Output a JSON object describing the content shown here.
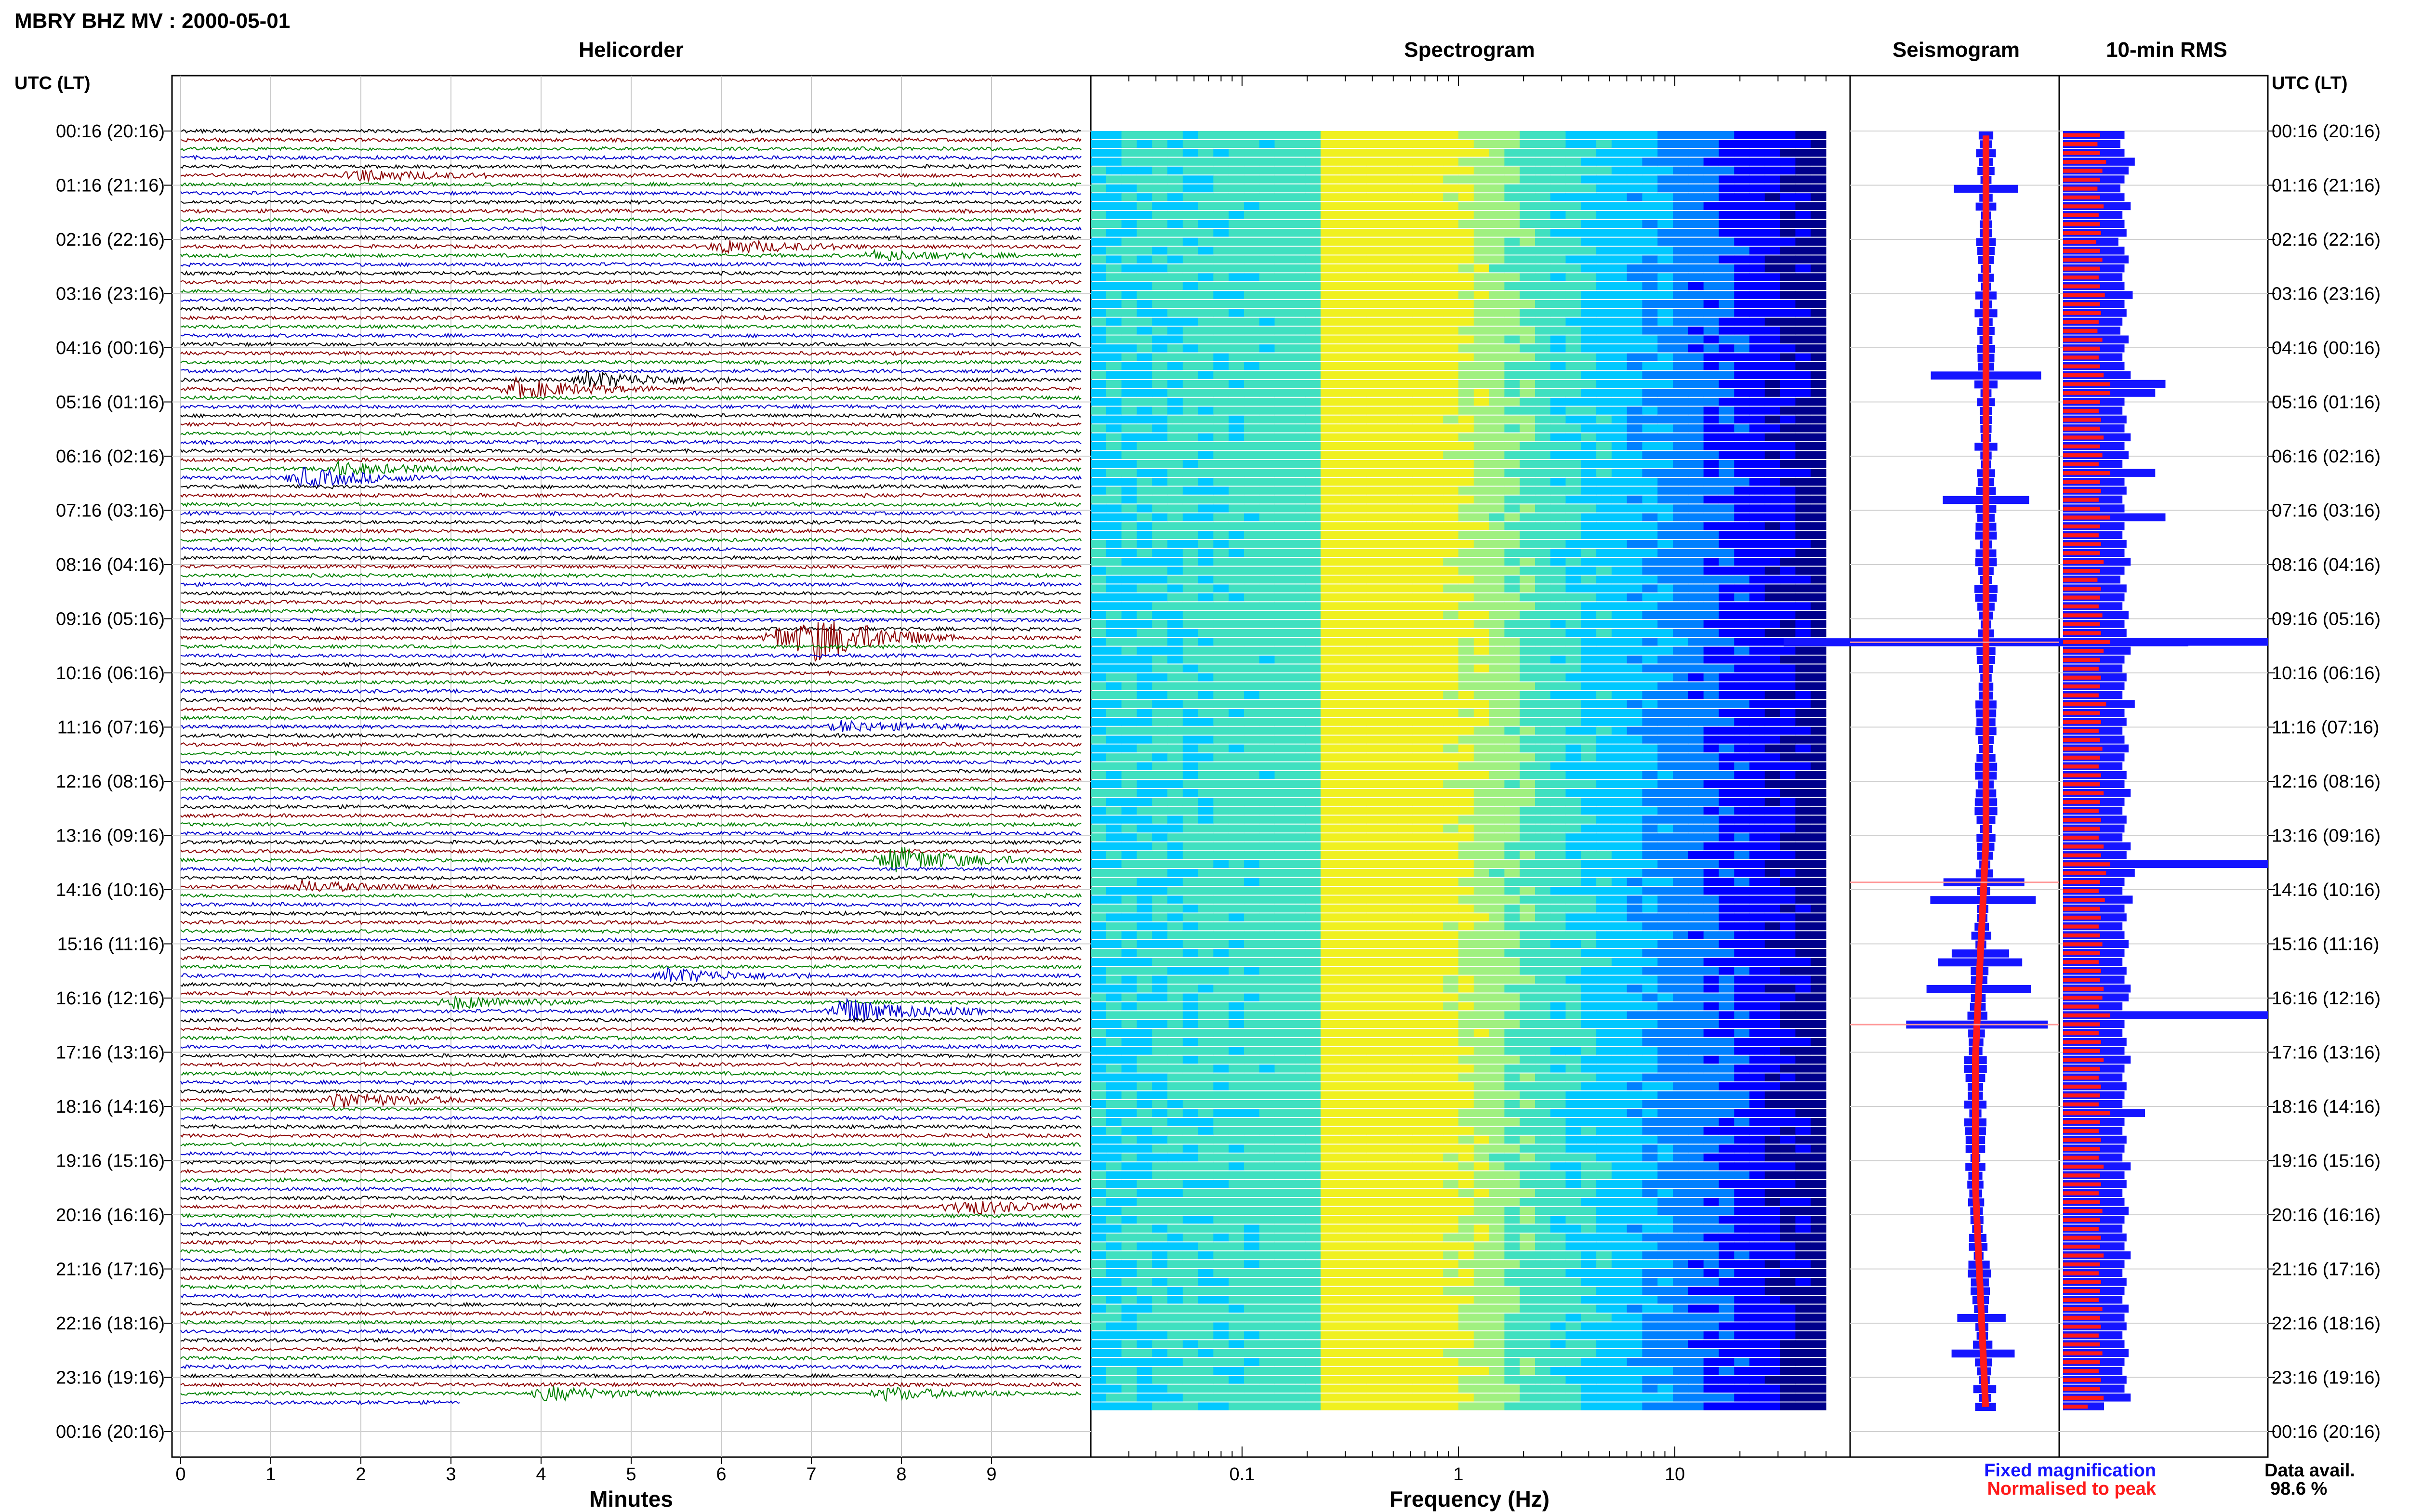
{
  "header": {
    "title": "MBRY BHZ MV : 2000-05-01",
    "utc_label_left": "UTC (LT)",
    "utc_label_right": "UTC (LT)"
  },
  "panels": {
    "helicorder": "Helicorder",
    "spectrogram": "Spectrogram",
    "seismogram": "Seismogram",
    "rms": "10-min RMS"
  },
  "axes": {
    "helicorder_xlabel": "Minutes",
    "spectrogram_xlabel": "Frequency (Hz)"
  },
  "legend": {
    "fixed": "Fixed magnification",
    "normalised": "Normalised to peak",
    "fixed_color": "#1515ff",
    "normalised_color": "#ff1a1a"
  },
  "data_availability": {
    "label": "Data avail.",
    "value": "98.6 %"
  },
  "time_labels": [
    "00:16 (20:16)",
    "01:16 (21:16)",
    "02:16 (22:16)",
    "03:16 (23:16)",
    "04:16 (00:16)",
    "05:16 (01:16)",
    "06:16 (02:16)",
    "07:16 (03:16)",
    "08:16 (04:16)",
    "09:16 (05:16)",
    "10:16 (06:16)",
    "11:16 (07:16)",
    "12:16 (08:16)",
    "13:16 (09:16)",
    "14:16 (10:16)",
    "15:16 (11:16)",
    "16:16 (12:16)",
    "17:16 (13:16)",
    "18:16 (14:16)",
    "19:16 (15:16)",
    "20:16 (16:16)",
    "21:16 (17:16)",
    "22:16 (18:16)",
    "23:16 (19:16)",
    "00:16 (20:16)"
  ],
  "chart_data": [
    {
      "type": "line",
      "name": "helicorder",
      "xlabel": "Minutes",
      "x_ticks": [
        "0",
        "1",
        "2",
        "3",
        "4",
        "5",
        "6",
        "7",
        "8",
        "9"
      ],
      "xlim": [
        0,
        10
      ],
      "rows": 144,
      "row_minutes": 10,
      "trace_colors": [
        "#000000",
        "#8b0000",
        "#008000",
        "#0000cd"
      ],
      "events": [
        {
          "row": 5,
          "minute": 1.9,
          "amplitude": 2.2
        },
        {
          "row": 13,
          "minute": 6.0,
          "amplitude": 2.6
        },
        {
          "row": 14,
          "minute": 7.7,
          "amplitude": 1.8
        },
        {
          "row": 29,
          "minute": 3.7,
          "amplitude": 3.5
        },
        {
          "row": 28,
          "minute": 4.5,
          "amplitude": 3.0
        },
        {
          "row": 38,
          "minute": 1.7,
          "amplitude": 2.3
        },
        {
          "row": 39,
          "minute": 1.3,
          "amplitude": 3.5
        },
        {
          "row": 57,
          "minute": 7.0,
          "amplitude": 6.5
        },
        {
          "row": 57,
          "minute": 6.6,
          "amplitude": 4.0
        },
        {
          "row": 67,
          "minute": 7.3,
          "amplitude": 2.0
        },
        {
          "row": 82,
          "minute": 7.85,
          "amplitude": 5.0
        },
        {
          "row": 85,
          "minute": 1.3,
          "amplitude": 2.0
        },
        {
          "row": 95,
          "minute": 5.4,
          "amplitude": 2.5
        },
        {
          "row": 98,
          "minute": 3.0,
          "amplitude": 2.2
        },
        {
          "row": 99,
          "minute": 7.3,
          "amplitude": 5.0
        },
        {
          "row": 109,
          "minute": 1.7,
          "amplitude": 3.0
        },
        {
          "row": 121,
          "minute": 8.6,
          "amplitude": 2.8
        },
        {
          "row": 142,
          "minute": 4.0,
          "amplitude": 2.5
        },
        {
          "row": 142,
          "minute": 7.8,
          "amplitude": 2.2
        }
      ]
    },
    {
      "type": "heatmap",
      "name": "spectrogram",
      "xlabel": "Frequency (Hz)",
      "x_scale": "log",
      "xlim": [
        0.02,
        50
      ],
      "x_ticks": [
        0.1,
        1,
        10
      ],
      "x_tick_labels": [
        "0.1",
        "1",
        "10"
      ],
      "rows": 144,
      "colormap": [
        "#00008b",
        "#0000ff",
        "#0080ff",
        "#00c8ff",
        "#40e0c0",
        "#a0f080",
        "#f0f020"
      ],
      "peak_band_hz": [
        0.2,
        0.6
      ]
    },
    {
      "type": "line",
      "name": "seismogram",
      "rows": 144,
      "series": [
        {
          "name": "Fixed magnification",
          "color": "#1515ff"
        },
        {
          "name": "Normalised to peak",
          "color": "#ff1a1a"
        }
      ],
      "spikes": [
        {
          "row": 57,
          "amplitude": 1.0
        },
        {
          "row": 84,
          "amplitude": 0.2
        },
        {
          "row": 100,
          "amplitude": 0.35
        }
      ]
    },
    {
      "type": "bar",
      "name": "10-min RMS",
      "rows": 144,
      "series": [
        {
          "name": "Fixed magnification",
          "color": "#1515ff",
          "values": [
            0.3,
            0.28,
            0.3,
            0.35,
            0.32,
            0.3,
            0.28,
            0.3,
            0.33,
            0.29,
            0.3,
            0.31,
            0.27,
            0.3,
            0.32,
            0.3,
            0.29,
            0.3,
            0.34,
            0.3,
            0.31,
            0.29,
            0.28,
            0.32,
            0.3,
            0.29,
            0.3,
            0.33,
            0.5,
            0.45,
            0.3,
            0.29,
            0.31,
            0.3,
            0.33,
            0.3,
            0.32,
            0.29,
            0.45,
            0.3,
            0.31,
            0.29,
            0.3,
            0.5,
            0.3,
            0.29,
            0.31,
            0.3,
            0.33,
            0.3,
            0.28,
            0.31,
            0.3,
            0.29,
            0.32,
            0.3,
            0.31,
            1.0,
            0.33,
            0.3,
            0.29,
            0.31,
            0.3,
            0.29,
            0.35,
            0.3,
            0.31,
            0.29,
            0.3,
            0.32,
            0.3,
            0.29,
            0.31,
            0.3,
            0.33,
            0.3,
            0.29,
            0.31,
            0.3,
            0.29,
            0.33,
            0.31,
            1.0,
            0.35,
            0.3,
            0.29,
            0.34,
            0.3,
            0.31,
            0.29,
            0.3,
            0.32,
            0.3,
            0.29,
            0.31,
            0.3,
            0.33,
            0.32,
            0.29,
            1.0,
            0.3,
            0.29,
            0.31,
            0.3,
            0.33,
            0.3,
            0.29,
            0.31,
            0.3,
            0.29,
            0.4,
            0.3,
            0.29,
            0.31,
            0.3,
            0.29,
            0.33,
            0.3,
            0.31,
            0.29,
            0.3,
            0.32,
            0.3,
            0.29,
            0.31,
            0.3,
            0.33,
            0.3,
            0.29,
            0.31,
            0.3,
            0.29,
            0.32,
            0.3,
            0.31,
            0.29,
            0.3,
            0.32,
            0.3,
            0.29,
            0.31,
            0.3,
            0.33,
            0.2
          ]
        }
      ]
    }
  ]
}
